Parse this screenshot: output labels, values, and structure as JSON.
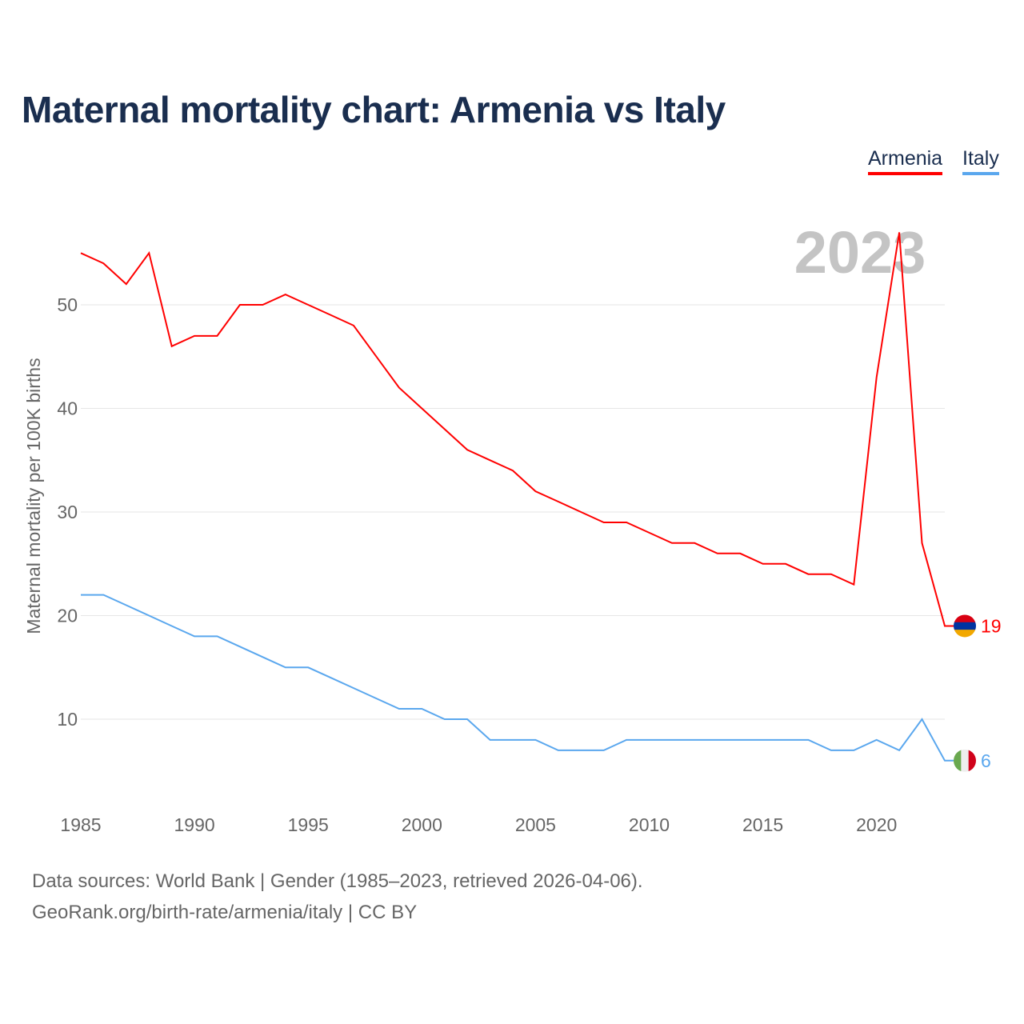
{
  "title": "Maternal mortality chart: Armenia vs Italy",
  "footer": {
    "line1": "Data sources: World Bank | Gender (1985–2023, retrieved 2026-04-06).",
    "line2": "GeoRank.org/birth-rate/armenia/italy | CC BY"
  },
  "chart_data": {
    "type": "line",
    "title": "Maternal mortality chart: Armenia vs Italy",
    "xlabel": "",
    "ylabel": "Maternal mortality per 100K births",
    "year_watermark": "2023",
    "xlim": [
      1985,
      2023
    ],
    "ylim": [
      3,
      58
    ],
    "xticks": [
      1985,
      1990,
      1995,
      2000,
      2005,
      2010,
      2015,
      2020
    ],
    "yticks": [
      10,
      20,
      30,
      40,
      50
    ],
    "grid": true,
    "legend_position": "top-right",
    "x": [
      1985,
      1986,
      1987,
      1988,
      1989,
      1990,
      1991,
      1992,
      1993,
      1994,
      1995,
      1996,
      1997,
      1998,
      1999,
      2000,
      2001,
      2002,
      2003,
      2004,
      2005,
      2006,
      2007,
      2008,
      2009,
      2010,
      2011,
      2012,
      2013,
      2014,
      2015,
      2016,
      2017,
      2018,
      2019,
      2020,
      2021,
      2022,
      2023
    ],
    "series": [
      {
        "name": "Armenia",
        "color": "#ff0000",
        "end_label": "19",
        "values": [
          55,
          54,
          52,
          55,
          46,
          47,
          47,
          50,
          50,
          51,
          50,
          49,
          48,
          45,
          42,
          40,
          38,
          36,
          35,
          34,
          32,
          31,
          30,
          29,
          29,
          28,
          27,
          27,
          26,
          26,
          25,
          25,
          24,
          24,
          23,
          43,
          57,
          27,
          19
        ]
      },
      {
        "name": "Italy",
        "color": "#5aa7ee",
        "end_label": "6",
        "values": [
          22,
          22,
          21,
          20,
          19,
          18,
          18,
          17,
          16,
          15,
          15,
          14,
          13,
          12,
          11,
          11,
          10,
          10,
          8,
          8,
          8,
          7,
          7,
          7,
          8,
          8,
          8,
          8,
          8,
          8,
          8,
          8,
          8,
          7,
          7,
          8,
          7,
          10,
          6
        ]
      }
    ]
  }
}
